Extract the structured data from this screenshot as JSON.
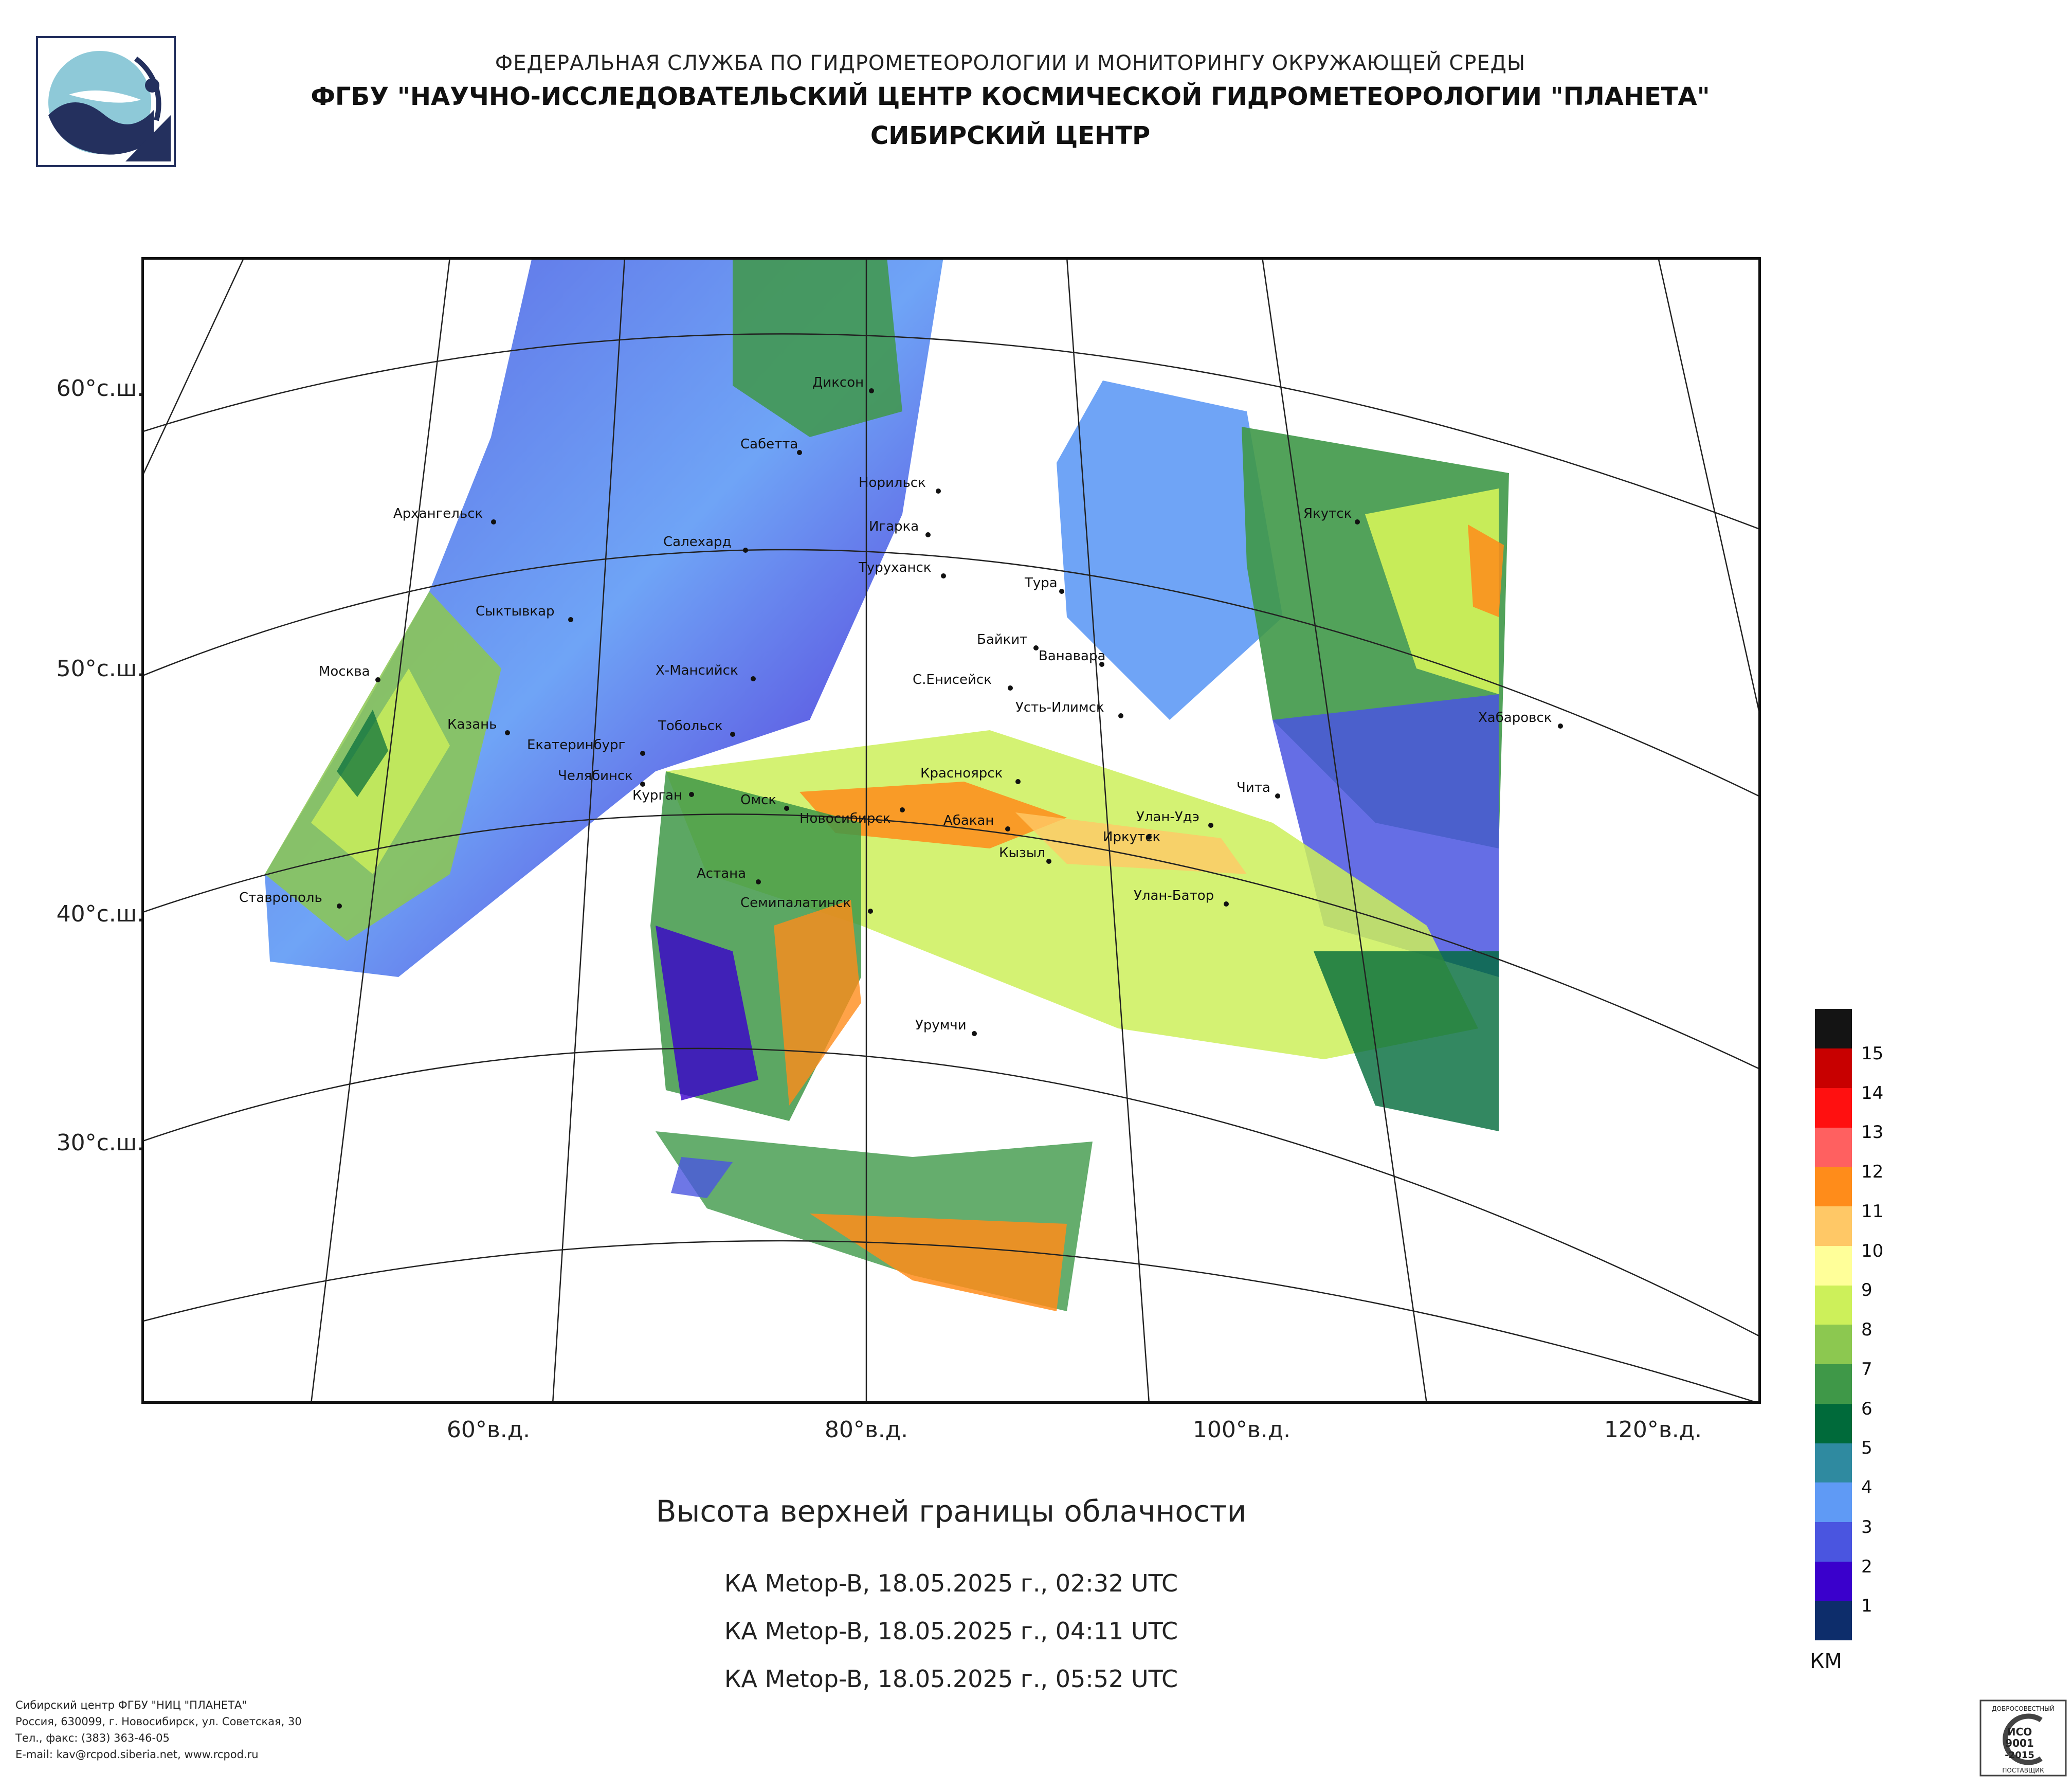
{
  "header": {
    "line1": "ФЕДЕРАЛЬНАЯ СЛУЖБА ПО ГИДРОМЕТЕОРОЛОГИИ И МОНИТОРИНГУ ОКРУЖАЮЩЕЙ СРЕДЫ",
    "line2": "ФГБУ \"НАУЧНО-ИССЛЕДОВАТЕЛЬСКИЙ ЦЕНТР КОСМИЧЕСКОЙ ГИДРОМЕТЕОРОЛОГИИ \"ПЛАНЕТА\"",
    "line3": "СИБИРСКИЙ ЦЕНТР"
  },
  "map": {
    "latitude_labels": [
      "60°с.ш.",
      "50°с.ш.",
      "40°с.ш.",
      "30°с.ш."
    ],
    "longitude_labels": [
      "60°в.д.",
      "80°в.д.",
      "100°в.д.",
      "120°в.д."
    ],
    "cities": [
      "Диксон",
      "Сабетта",
      "Норильск",
      "Архангельск",
      "Игарка",
      "Салехард",
      "Туруханск",
      "Тура",
      "Якутск",
      "Сыктывкар",
      "Байкит",
      "Ванавара",
      "Москва",
      "Х-Мансийск",
      "С.Енисейск",
      "Усть-Илимск",
      "Хабаровск",
      "Казань",
      "Тобольск",
      "Екатеринбург",
      "Челябинск",
      "Курган",
      "Красноярск",
      "Чита",
      "Омск",
      "Новосибирск",
      "Абакан",
      "Улан-Удэ",
      "Иркутск",
      "Кызыл",
      "Астана",
      "Ставрополь",
      "Семипалатинск",
      "Улан-Батор",
      "Урумчи"
    ]
  },
  "legend": {
    "unit": "КМ",
    "levels": [
      "1",
      "2",
      "3",
      "4",
      "5",
      "6",
      "7",
      "8",
      "9",
      "10",
      "11",
      "12",
      "13",
      "14",
      "15"
    ],
    "colors": [
      "#0d2d6b",
      "#3a00cc",
      "#4a55e0",
      "#5f9af5",
      "#2f8aa0",
      "#006a3a",
      "#3f9848",
      "#8cc850",
      "#cdf05a",
      "#ffff99",
      "#ffc866",
      "#ff8c1a",
      "#ff6060",
      "#ff1010",
      "#c80000",
      "#141414"
    ]
  },
  "caption": {
    "title": "Высота верхней границы облачности",
    "passes": [
      "КА Metop-B, 18.05.2025 г., 02:32 UTC",
      "КА Metop-B, 18.05.2025 г., 04:11 UTC",
      "КА Metop-B, 18.05.2025 г., 05:52 UTC"
    ]
  },
  "footer": {
    "org": "Сибирский центр ФГБУ \"НИЦ \"ПЛАНЕТА\"",
    "address": "Россия, 630099, г. Новосибирск, ул. Советская, 30",
    "phone": "Тел., факс: (383) 363-46-05",
    "email": "E-mail: kav@rcpod.siberia.net, www.rcpod.ru"
  },
  "iso_badge": {
    "top": "ДОБРОСОВЕСТНЫЙ",
    "line1": "ИСО",
    "line2": "9001",
    "line3": "-2015",
    "bottom": "ПОСТАВЩИК"
  }
}
